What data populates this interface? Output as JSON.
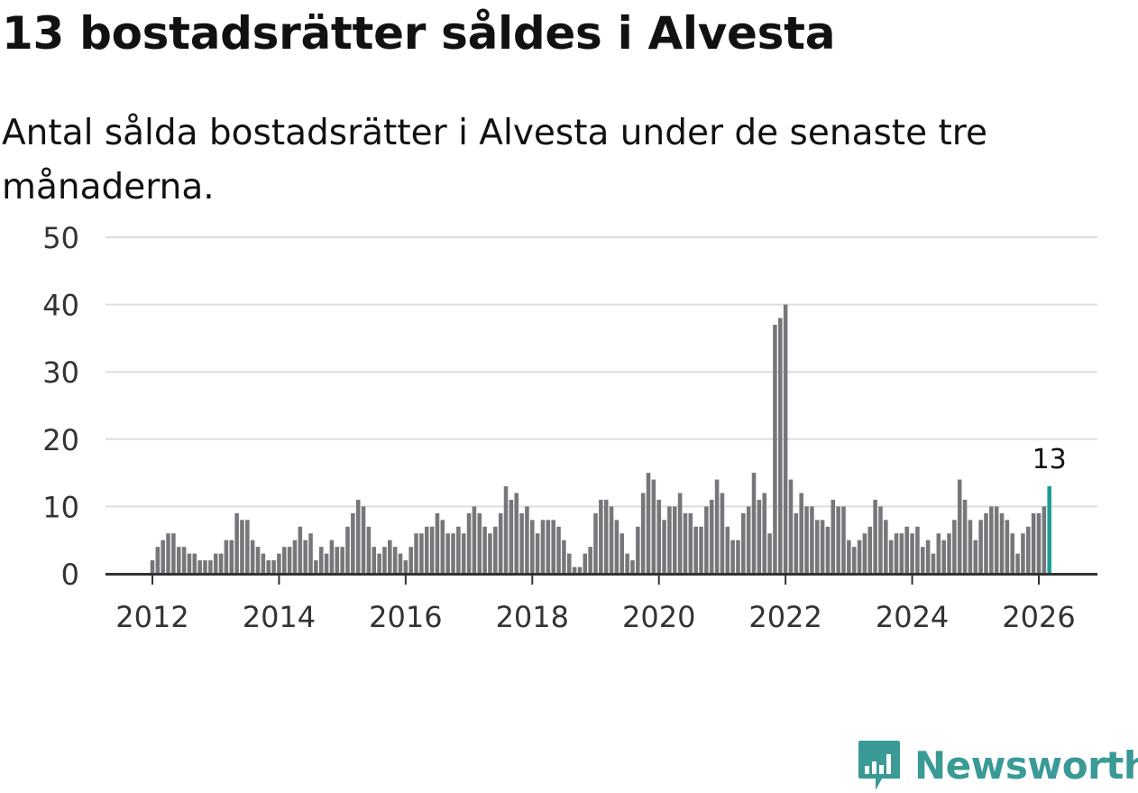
{
  "title": "13 bostadsrätter såldes i Alvesta",
  "subtitle": "Antal sålda bostadsrätter i Alvesta under de senaste tre månaderna.",
  "brand": {
    "name": "Newsworthy",
    "icon": "newsworthy-logo-icon",
    "color": "#3a9a96"
  },
  "colors": {
    "bar": "#77767b",
    "highlight": "#1a9e96",
    "grid": "#dddddd",
    "axis": "#333333"
  },
  "chart_data": {
    "type": "bar",
    "title": "13 bostadsrätter såldes i Alvesta",
    "xlabel": "",
    "ylabel": "",
    "ylim": [
      0,
      50
    ],
    "yticks": [
      0,
      10,
      20,
      30,
      40,
      50
    ],
    "xticks": [
      "2012",
      "2014",
      "2016",
      "2018",
      "2020",
      "2022",
      "2024",
      "2026"
    ],
    "x_start": "2011-05",
    "highlight_label": "13",
    "grid": true,
    "values": [
      0,
      0,
      0,
      0,
      0,
      0,
      0,
      0,
      2,
      4,
      5,
      6,
      6,
      4,
      4,
      3,
      3,
      2,
      2,
      2,
      3,
      3,
      5,
      5,
      9,
      8,
      8,
      5,
      4,
      3,
      2,
      2,
      3,
      4,
      4,
      5,
      7,
      5,
      6,
      2,
      4,
      3,
      5,
      4,
      4,
      7,
      9,
      11,
      10,
      7,
      4,
      3,
      4,
      5,
      4,
      3,
      2,
      4,
      6,
      6,
      7,
      7,
      9,
      8,
      6,
      6,
      7,
      6,
      9,
      10,
      9,
      7,
      6,
      7,
      9,
      13,
      11,
      12,
      9,
      10,
      8,
      6,
      8,
      8,
      8,
      7,
      5,
      3,
      1,
      1,
      3,
      4,
      9,
      11,
      11,
      10,
      8,
      6,
      3,
      2,
      7,
      12,
      15,
      14,
      11,
      8,
      10,
      10,
      12,
      9,
      9,
      7,
      7,
      10,
      11,
      14,
      12,
      7,
      5,
      5,
      9,
      10,
      15,
      11,
      12,
      6,
      37,
      38,
      40,
      14,
      9,
      12,
      10,
      10,
      8,
      8,
      7,
      11,
      10,
      10,
      5,
      4,
      5,
      6,
      7,
      11,
      10,
      8,
      5,
      6,
      6,
      7,
      6,
      7,
      4,
      5,
      3,
      6,
      5,
      6,
      8,
      14,
      11,
      8,
      5,
      8,
      9,
      10,
      10,
      9,
      8,
      6,
      3,
      6,
      7,
      9,
      9,
      10,
      13
    ]
  }
}
